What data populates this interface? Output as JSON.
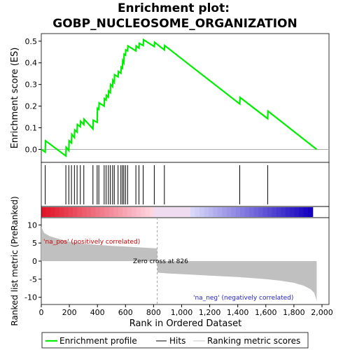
{
  "chart_data": [
    {
      "type": "line",
      "title": "Enrichment plot:",
      "subtitle": "GOBP_NUCLEOSOME_ORGANIZATION",
      "ylabel": "Enrichment score (ES)",
      "ylim": [
        -0.06,
        0.535
      ],
      "xlim": [
        0,
        2050
      ],
      "yticks": [
        "0.0",
        "0.1",
        "0.2",
        "0.3",
        "0.4",
        "0.5"
      ],
      "series": [
        {
          "name": "Enrichment profile",
          "color": "#00ee00",
          "x": [
            0,
            28,
            30,
            175,
            177,
            196,
            198,
            215,
            217,
            236,
            238,
            255,
            257,
            278,
            280,
            303,
            305,
            368,
            370,
            398,
            400,
            410,
            412,
            448,
            450,
            462,
            464,
            478,
            480,
            492,
            494,
            508,
            510,
            520,
            522,
            547,
            549,
            567,
            569,
            578,
            580,
            588,
            590,
            600,
            602,
            615,
            617,
            674,
            676,
            696,
            698,
            726,
            728,
            805,
            807,
            877,
            879,
            1414,
            1416,
            1613,
            1615,
            1962
          ],
          "y": [
            0.0,
            -0.012,
            0.04,
            -0.03,
            0.01,
            -0.005,
            0.04,
            0.03,
            0.07,
            0.055,
            0.09,
            0.08,
            0.115,
            0.105,
            0.13,
            0.115,
            0.14,
            0.095,
            0.135,
            0.125,
            0.19,
            0.185,
            0.215,
            0.2,
            0.235,
            0.228,
            0.25,
            0.242,
            0.27,
            0.262,
            0.3,
            0.29,
            0.32,
            0.31,
            0.345,
            0.335,
            0.36,
            0.352,
            0.38,
            0.375,
            0.41,
            0.4,
            0.44,
            0.435,
            0.46,
            0.455,
            0.478,
            0.455,
            0.478,
            0.468,
            0.49,
            0.48,
            0.507,
            0.475,
            0.495,
            0.46,
            0.48,
            0.21,
            0.24,
            0.142,
            0.177,
            0.0
          ]
        }
      ],
      "hits": [
        28,
        175,
        196,
        215,
        236,
        255,
        278,
        303,
        368,
        398,
        410,
        448,
        462,
        478,
        492,
        508,
        520,
        547,
        567,
        578,
        588,
        600,
        615,
        674,
        696,
        726,
        805,
        877,
        1414,
        1613
      ]
    },
    {
      "type": "area",
      "ylabel": "Ranked list metric (PreRanked)",
      "xlabel": "Rank in Ordered Dataset",
      "xlim": [
        0,
        2050
      ],
      "ylim": [
        -12,
        12
      ],
      "yticks": [
        "10",
        "5",
        "0",
        "-5",
        "-10"
      ],
      "xticks": [
        "0",
        "200",
        "400",
        "600",
        "800",
        "1,000",
        "1,200",
        "1,400",
        "1,600",
        "1,800",
        "2,000"
      ],
      "zero_cross_label": "Zero cross at 826",
      "pos_label": "'na_pos' (positively correlated)",
      "neg_label": "'na_neg' (negatively correlated)",
      "x": [
        0,
        20,
        60,
        120,
        200,
        300,
        400,
        500,
        600,
        700,
        826,
        827,
        900,
        1000,
        1100,
        1200,
        1300,
        1400,
        1500,
        1600,
        1700,
        1800,
        1870,
        1920,
        1945,
        1955,
        1962
      ],
      "values": [
        9.5,
        7.8,
        6.9,
        6.2,
        5.4,
        4.8,
        4.5,
        4.2,
        4.0,
        3.8,
        3.5,
        -3.2,
        -3.4,
        -3.6,
        -3.8,
        -4.0,
        -4.2,
        -4.4,
        -4.7,
        -5.0,
        -5.4,
        -6.0,
        -6.8,
        -7.8,
        -8.8,
        -10.0,
        -11.0
      ]
    }
  ],
  "legend": {
    "items": [
      {
        "label": "Enrichment profile",
        "color": "#00ee00"
      },
      {
        "label": "Hits",
        "color": "#000000"
      },
      {
        "label": "Ranking metric scores",
        "color": "#c8c8c8"
      }
    ]
  },
  "colors": {
    "es_line": "#00ee00",
    "metric_fill": "#c0c0c0",
    "pos_text": "#cc0000",
    "neg_text": "#2222cc"
  }
}
